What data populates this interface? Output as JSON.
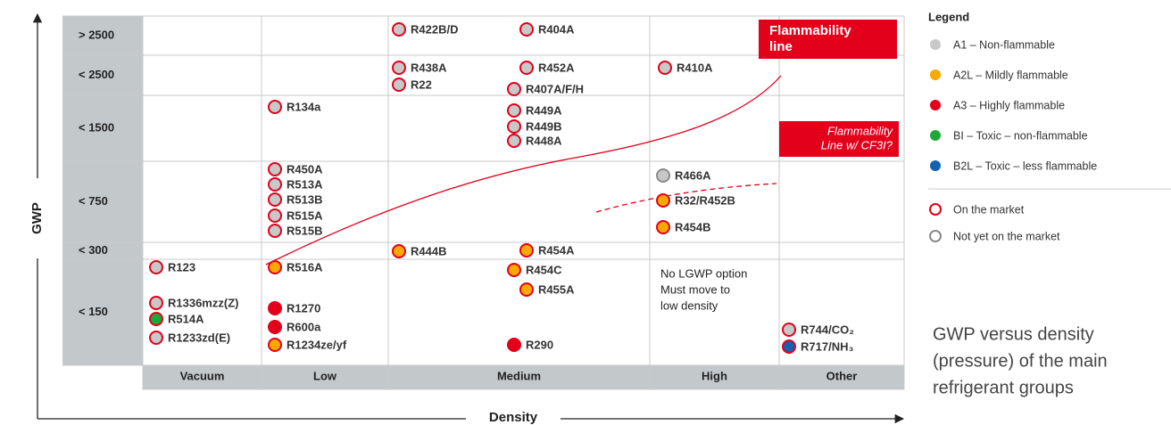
{
  "rows": [
    "> 2500",
    "< 2500",
    "< 1500",
    "< 750",
    "< 300",
    "< 150"
  ],
  "columns": [
    "Vacuum",
    "Low",
    "Medium",
    "High",
    "Other"
  ],
  "refrigerants": [
    {
      "label": "R422B/D",
      "fill": "#c8c8c8",
      "ring": "#e2001a"
    },
    {
      "label": "R404A",
      "fill": "#c8c8c8",
      "ring": "#e2001a"
    },
    {
      "label": "R438A",
      "fill": "#c8c8c8",
      "ring": "#e2001a"
    },
    {
      "label": "R22",
      "fill": "#c8c8c8",
      "ring": "#e2001a"
    },
    {
      "label": "R452A",
      "fill": "#c8c8c8",
      "ring": "#e2001a"
    },
    {
      "label": "R407A/F/H",
      "fill": "#c8c8c8",
      "ring": "#e2001a"
    },
    {
      "label": "R410A",
      "fill": "#c8c8c8",
      "ring": "#e2001a"
    },
    {
      "label": "R134a",
      "fill": "#c8c8c8",
      "ring": "#e2001a"
    },
    {
      "label": "R449A",
      "fill": "#c8c8c8",
      "ring": "#e2001a"
    },
    {
      "label": "R449B",
      "fill": "#c8c8c8",
      "ring": "#e2001a"
    },
    {
      "label": "R448A",
      "fill": "#c8c8c8",
      "ring": "#e2001a"
    },
    {
      "label": "R450A",
      "fill": "#c8c8c8",
      "ring": "#e2001a"
    },
    {
      "label": "R513A",
      "fill": "#c8c8c8",
      "ring": "#e2001a"
    },
    {
      "label": "R513B",
      "fill": "#c8c8c8",
      "ring": "#e2001a"
    },
    {
      "label": "R515A",
      "fill": "#c8c8c8",
      "ring": "#e2001a"
    },
    {
      "label": "R515B",
      "fill": "#c8c8c8",
      "ring": "#e2001a"
    },
    {
      "label": "R466A",
      "fill": "#c8c8c8",
      "ring": "#8a8a8a"
    },
    {
      "label": "R32/R452B",
      "fill": "#f7a900",
      "ring": "#e2001a"
    },
    {
      "label": "R454B",
      "fill": "#f7a900",
      "ring": "#e2001a"
    },
    {
      "label": "R444B",
      "fill": "#f7a900",
      "ring": "#e2001a"
    },
    {
      "label": "R454A",
      "fill": "#f7a900",
      "ring": "#e2001a"
    },
    {
      "label": "R123",
      "fill": "#c8c8c8",
      "ring": "#e2001a"
    },
    {
      "label": "R516A",
      "fill": "#f7a900",
      "ring": "#e2001a"
    },
    {
      "label": "R454C",
      "fill": "#f7a900",
      "ring": "#e2001a"
    },
    {
      "label": "R455A",
      "fill": "#f7a900",
      "ring": "#e2001a"
    },
    {
      "label": "R1336mzz(Z)",
      "fill": "#c8c8c8",
      "ring": "#e2001a"
    },
    {
      "label": "R514A",
      "fill": "#1fa83a",
      "ring": "#e2001a"
    },
    {
      "label": "R1233zd(E)",
      "fill": "#c8c8c8",
      "ring": "#e2001a"
    },
    {
      "label": "R1270",
      "fill": "#e2001a",
      "ring": "#e2001a"
    },
    {
      "label": "R600a",
      "fill": "#e2001a",
      "ring": "#e2001a"
    },
    {
      "label": "R1234ze/yf",
      "fill": "#f7a900",
      "ring": "#e2001a"
    },
    {
      "label": "R290",
      "fill": "#e2001a",
      "ring": "#e2001a"
    },
    {
      "label": "R744/CO₂",
      "fill": "#c8c8c8",
      "ring": "#e2001a"
    },
    {
      "label": "R717/NH₃",
      "fill": "#1560b0",
      "ring": "#e2001a"
    }
  ],
  "note": [
    "No LGWP option",
    "Must move to",
    "low density"
  ],
  "callouts": {
    "flammability_line": [
      "Flammability",
      "line"
    ],
    "cf3i_line": [
      "Flammability",
      "Line w/ CF3I?"
    ]
  },
  "axes": {
    "y": "GWP",
    "x": "Density"
  },
  "legend": {
    "title": "Legend",
    "items": [
      {
        "label": "A1 – Non-flammable",
        "color": "#c8c8c8"
      },
      {
        "label": "A2L –  Mildly flammable",
        "color": "#f7a900"
      },
      {
        "label": "A3 –  Highly flammable",
        "color": "#e2001a"
      },
      {
        "label": "BI – Toxic – non-flammable",
        "color": "#1fa83a"
      },
      {
        "label": "B2L – Toxic – less flammable",
        "color": "#1560b0"
      }
    ],
    "markers": [
      {
        "label": "On the market",
        "ring": "#e2001a"
      },
      {
        "label": "Not yet on the market",
        "ring": "#8a8a8a"
      }
    ]
  },
  "caption": [
    "GWP versus density",
    "(pressure) of the main",
    "refrigerant groups"
  ]
}
